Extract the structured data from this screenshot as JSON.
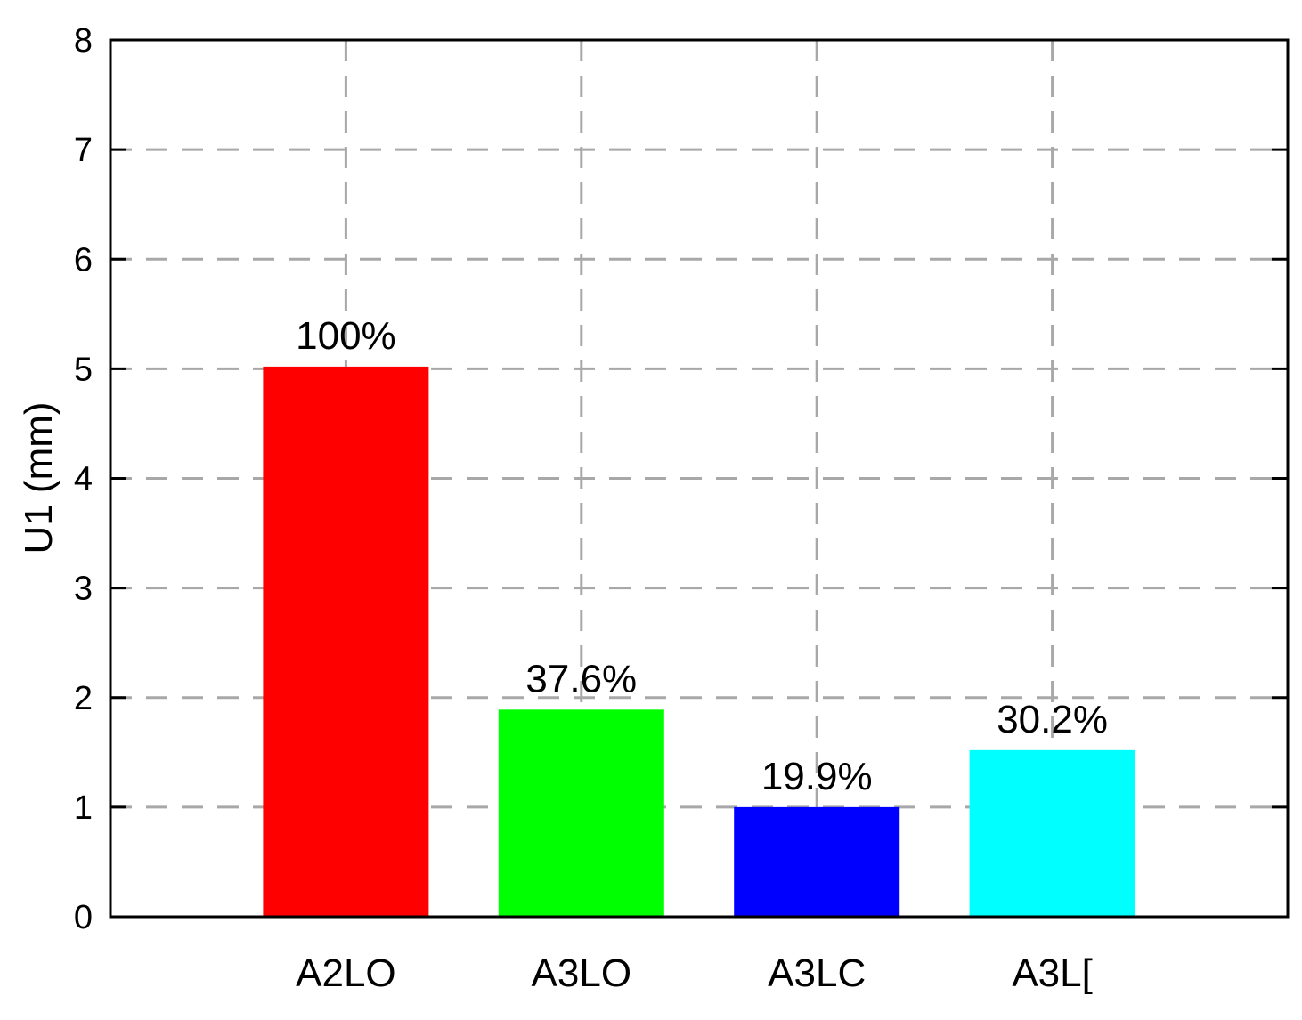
{
  "chart_data": {
    "type": "bar",
    "categories": [
      "A2LO",
      "A3LO",
      "A3LC",
      "A3L["
    ],
    "values": [
      5.02,
      1.89,
      1.0,
      1.52
    ],
    "data_labels": [
      "100%",
      "37.6%",
      "19.9%",
      "30.2%"
    ],
    "colors": [
      "#ff0000",
      "#00ff00",
      "#0000ff",
      "#00ffff"
    ],
    "ylabel": "U1 (mm)",
    "xlabel": "",
    "title": "",
    "ylim": [
      0,
      8
    ],
    "yticks": [
      "0",
      "1",
      "2",
      "3",
      "4",
      "5",
      "6",
      "7",
      "8"
    ],
    "grid": true,
    "legend": "none"
  }
}
